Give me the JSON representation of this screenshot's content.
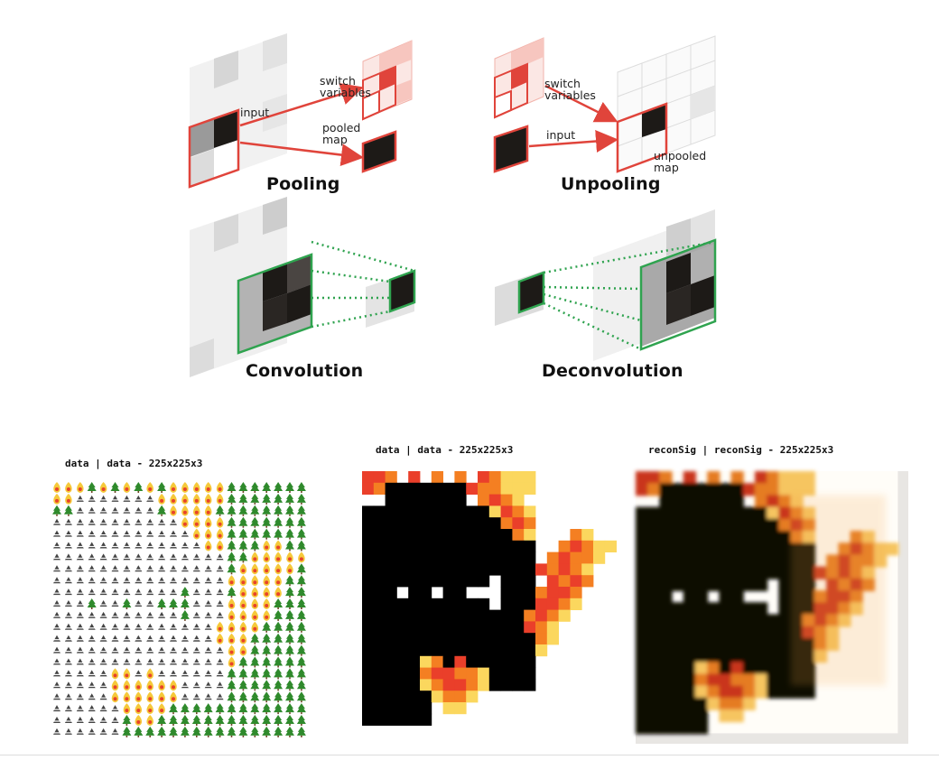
{
  "diagrams": {
    "pooling": {
      "title": "Pooling",
      "input_label": "input",
      "switch_label": "switch\nvariables",
      "pooled_label": "pooled\nmap"
    },
    "unpooling": {
      "title": "Unpooling",
      "switch_label": "switch\nvariables",
      "input_label": "input",
      "unpooled_label": "unpooled\nmap"
    },
    "convolution": {
      "title": "Convolution"
    },
    "deconvolution": {
      "title": "Deconvolution"
    }
  },
  "panels": [
    {
      "caption": "data | data - 225x225x3"
    },
    {
      "caption": "data | data - 225x225x3"
    },
    {
      "caption": "reconSig | reconSig - 225x225x3"
    }
  ],
  "colors": {
    "red": "#e0443b",
    "green": "#2fa34f",
    "fire_orange": "#f07a20",
    "fire_yellow": "#fbd24a",
    "tree_green": "#2f8a2c"
  }
}
